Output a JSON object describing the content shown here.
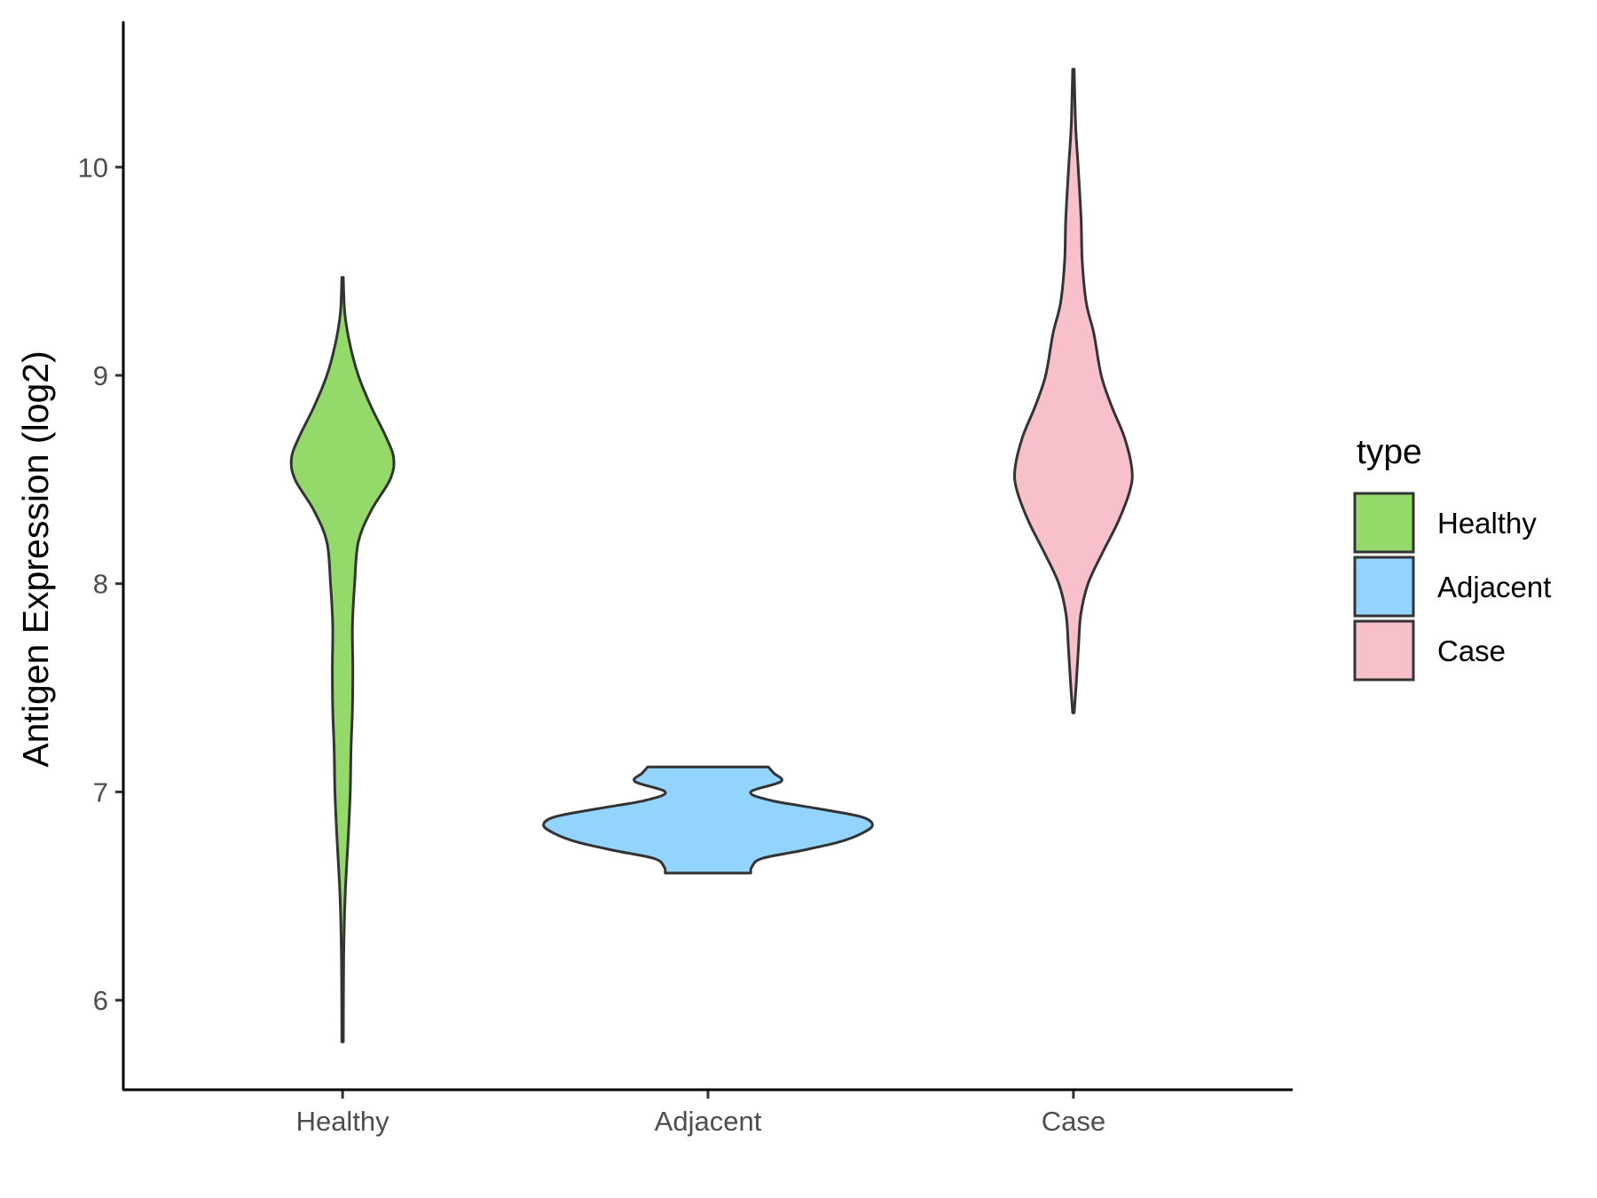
{
  "chart_data": {
    "type": "violin",
    "ylabel": "Antigen Expression (log2)",
    "xlabel": "",
    "categories": [
      "Healthy",
      "Adjacent",
      "Case"
    ],
    "ylim": [
      5.57,
      10.7
    ],
    "yticks": [
      6,
      7,
      8,
      9,
      10
    ],
    "grid": false,
    "legend": {
      "title": "type",
      "position": "right",
      "entries": [
        "Healthy",
        "Adjacent",
        "Case"
      ]
    },
    "series": [
      {
        "category": "Healthy",
        "color": "#93DA6A",
        "min": 5.8,
        "max": 9.47,
        "max_half_width_x": 0.14,
        "density_profile": [
          [
            5.8,
            0.002
          ],
          [
            6.2,
            0.003
          ],
          [
            6.5,
            0.007
          ],
          [
            6.8,
            0.016
          ],
          [
            7.0,
            0.021
          ],
          [
            7.2,
            0.023
          ],
          [
            7.4,
            0.027
          ],
          [
            7.6,
            0.028
          ],
          [
            7.8,
            0.027
          ],
          [
            8.0,
            0.033
          ],
          [
            8.2,
            0.043
          ],
          [
            8.35,
            0.078
          ],
          [
            8.5,
            0.13
          ],
          [
            8.6,
            0.14
          ],
          [
            8.7,
            0.12
          ],
          [
            8.85,
            0.078
          ],
          [
            9.0,
            0.043
          ],
          [
            9.15,
            0.02
          ],
          [
            9.3,
            0.006
          ],
          [
            9.47,
            0.002
          ]
        ]
      },
      {
        "category": "Adjacent",
        "color": "#92D4FE",
        "min": 6.61,
        "max": 7.12,
        "max_half_width_x": 0.45,
        "density_profile": [
          [
            6.61,
            0.117
          ],
          [
            6.64,
            0.12
          ],
          [
            6.68,
            0.147
          ],
          [
            6.72,
            0.26
          ],
          [
            6.76,
            0.36
          ],
          [
            6.8,
            0.42
          ],
          [
            6.84,
            0.45
          ],
          [
            6.88,
            0.42
          ],
          [
            6.92,
            0.3
          ],
          [
            6.96,
            0.17
          ],
          [
            7.0,
            0.117
          ],
          [
            7.05,
            0.2
          ],
          [
            7.09,
            0.18
          ],
          [
            7.12,
            0.165
          ]
        ]
      },
      {
        "category": "Case",
        "color": "#F7C0CB",
        "min": 7.38,
        "max": 10.47,
        "max_half_width_x": 0.16,
        "density_profile": [
          [
            7.38,
            0.002
          ],
          [
            7.5,
            0.007
          ],
          [
            7.7,
            0.014
          ],
          [
            7.85,
            0.02
          ],
          [
            8.0,
            0.04
          ],
          [
            8.15,
            0.08
          ],
          [
            8.3,
            0.123
          ],
          [
            8.45,
            0.155
          ],
          [
            8.55,
            0.16
          ],
          [
            8.7,
            0.14
          ],
          [
            8.85,
            0.105
          ],
          [
            9.0,
            0.076
          ],
          [
            9.2,
            0.056
          ],
          [
            9.35,
            0.035
          ],
          [
            9.55,
            0.024
          ],
          [
            9.75,
            0.021
          ],
          [
            10.0,
            0.013
          ],
          [
            10.2,
            0.006
          ],
          [
            10.47,
            0.002
          ]
        ]
      }
    ]
  }
}
